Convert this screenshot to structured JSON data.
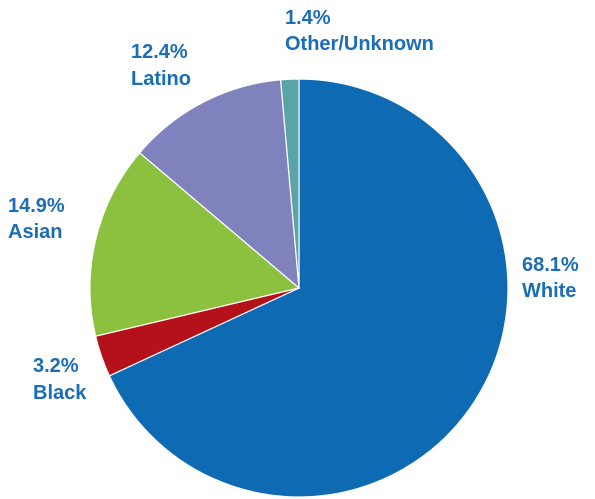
{
  "chart_data": {
    "type": "pie",
    "label_color": "#1a6db6",
    "slices": [
      {
        "name": "White",
        "value": 68.1,
        "value_label": "68.1%",
        "color": "#0f6ab4"
      },
      {
        "name": "Black",
        "value": 3.2,
        "value_label": "3.2%",
        "color": "#b4111b"
      },
      {
        "name": "Asian",
        "value": 14.9,
        "value_label": "14.9%",
        "color": "#8cc13f"
      },
      {
        "name": "Latino",
        "value": 12.4,
        "value_label": "12.4%",
        "color": "#7f82bd"
      },
      {
        "name": "Other/Unknown",
        "value": 1.4,
        "value_label": "1.4%",
        "color": "#5aa3a6"
      }
    ]
  }
}
